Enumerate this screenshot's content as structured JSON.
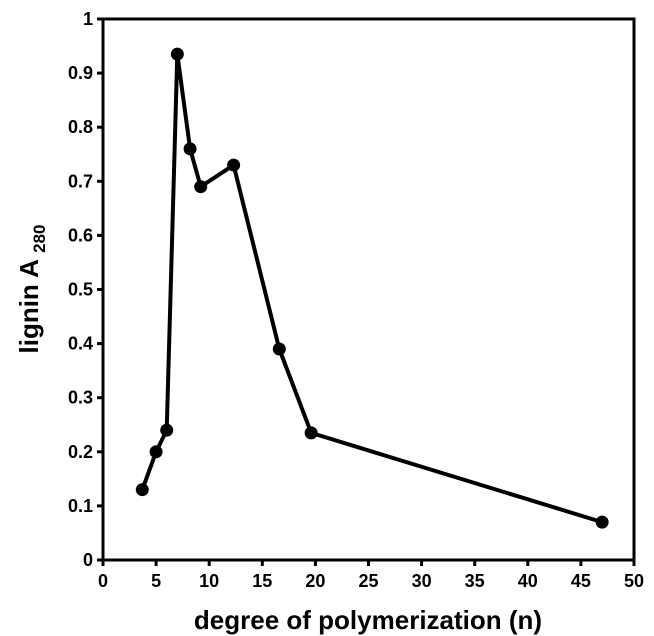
{
  "chart_data": {
    "type": "line",
    "xlabel": "degree of polymerization (n)",
    "ylabel": {
      "word": "lignin",
      "symbol": "A",
      "subscript": "280"
    },
    "xlim": [
      0,
      50
    ],
    "ylim": [
      0,
      1
    ],
    "xticks": [
      0,
      5,
      10,
      15,
      20,
      25,
      30,
      35,
      40,
      45,
      50
    ],
    "xtick_labels": [
      "0",
      "5",
      "10",
      "15",
      "20",
      "25",
      "30",
      "35",
      "40",
      "45",
      "50"
    ],
    "yticks": [
      0,
      0.1,
      0.2,
      0.3,
      0.4,
      0.5,
      0.6,
      0.7,
      0.8,
      0.9,
      1
    ],
    "ytick_labels": [
      "0",
      "0.1",
      "0.2",
      "0.3",
      "0.4",
      "0.5",
      "0.6",
      "0.7",
      "0.8",
      "0.9",
      "1"
    ],
    "grid": false,
    "legend": "none",
    "series": [
      {
        "color": "#000000",
        "marker": "circle",
        "x": [
          3.7,
          5.0,
          6.0,
          7.0,
          8.2,
          9.2,
          12.3,
          16.6,
          19.6,
          47.0
        ],
        "y": [
          0.13,
          0.2,
          0.24,
          0.935,
          0.76,
          0.69,
          0.73,
          0.39,
          0.235,
          0.07
        ]
      }
    ]
  }
}
